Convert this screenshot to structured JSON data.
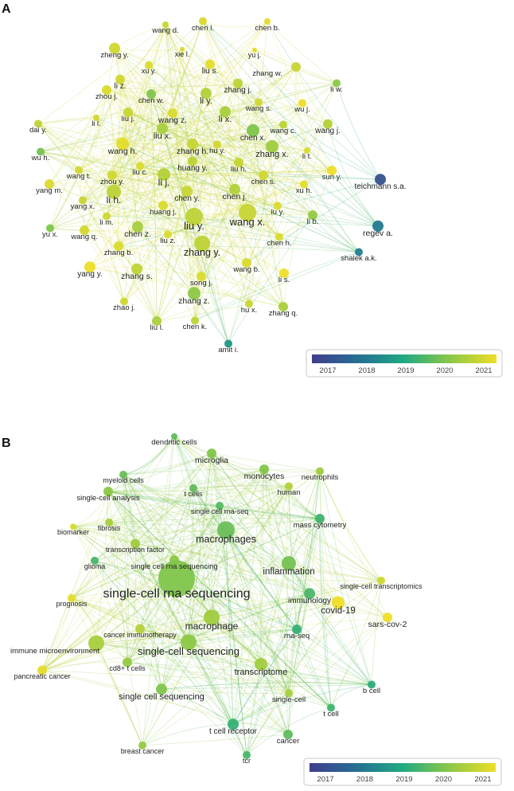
{
  "panels": [
    {
      "letter": "A",
      "legend": {
        "ticks": [
          "2017",
          "2018",
          "2019",
          "2020",
          "2021"
        ]
      },
      "nodes": [
        {
          "label": "wang d.",
          "year": 2020.6
        },
        {
          "label": "chen l.",
          "year": 2020.8
        },
        {
          "label": "chen b.",
          "year": 2020.9
        },
        {
          "label": "zheng y.",
          "year": 2020.7
        },
        {
          "label": "xie l.",
          "year": 2020.8
        },
        {
          "label": "yu j.",
          "year": 2020.9
        },
        {
          "label": "xu y.",
          "year": 2020.8
        },
        {
          "label": "liu s.",
          "year": 2020.9
        },
        {
          "label": "zhang w.",
          "year": 2020.6
        },
        {
          "label": "li z.",
          "year": 2020.7
        },
        {
          "label": "zhou j.",
          "year": 2020.8
        },
        {
          "label": "chen w.",
          "year": 2019.9
        },
        {
          "label": "li y.",
          "year": 2020.4
        },
        {
          "label": "zhang j.",
          "year": 2020.5
        },
        {
          "label": "wang s.",
          "year": 2020.7
        },
        {
          "label": "wu j.",
          "year": 2021.0
        },
        {
          "label": "li w.",
          "year": 2020.0
        },
        {
          "label": "dai y.",
          "year": 2020.5
        },
        {
          "label": "liu j.",
          "year": 2020.6
        },
        {
          "label": "wang z.",
          "year": 2020.8
        },
        {
          "label": "li x.",
          "year": 2020.3
        },
        {
          "label": "wang c.",
          "year": 2020.5
        },
        {
          "label": "wang j.",
          "year": 2020.4
        },
        {
          "label": "li l.",
          "year": 2020.7
        },
        {
          "label": "chen x.",
          "year": 2019.9
        },
        {
          "label": "liu x.",
          "year": 2020.3
        },
        {
          "label": "zhang h.",
          "year": 2020.6
        },
        {
          "label": "hu y.",
          "year": 2020.7
        },
        {
          "label": "zhang x.",
          "year": 2020.2
        },
        {
          "label": "wu h.",
          "year": 2019.8
        },
        {
          "label": "wang h.",
          "year": 2020.9
        },
        {
          "label": "li t.",
          "year": 2020.8
        },
        {
          "label": "sun y.",
          "year": 2021.0
        },
        {
          "label": "wang t.",
          "year": 2020.7
        },
        {
          "label": "huang y.",
          "year": 2020.5
        },
        {
          "label": "liu h.",
          "year": 2020.6
        },
        {
          "label": "liu c.",
          "year": 2020.8
        },
        {
          "label": "zhou y.",
          "year": 2020.7
        },
        {
          "label": "chen s.",
          "year": 2020.7
        },
        {
          "label": "xu h.",
          "year": 2020.9
        },
        {
          "label": "li j.",
          "year": 2020.4
        },
        {
          "label": "teichmann s.a.",
          "year": 2017.4
        },
        {
          "label": "yang m.",
          "year": 2020.8
        },
        {
          "label": "chen y.",
          "year": 2020.6
        },
        {
          "label": "chen j.",
          "year": 2020.4
        },
        {
          "label": "yang x.",
          "year": 2020.6
        },
        {
          "label": "li h.",
          "year": 2020.5
        },
        {
          "label": "huang j.",
          "year": 2020.8
        },
        {
          "label": "lu y.",
          "year": 2020.8
        },
        {
          "label": "li m.",
          "year": 2020.7
        },
        {
          "label": "liu y.",
          "year": 2020.5
        },
        {
          "label": "wang x.",
          "year": 2020.6
        },
        {
          "label": "li b.",
          "year": 2020.1
        },
        {
          "label": "yu x.",
          "year": 2019.9
        },
        {
          "label": "wang q.",
          "year": 2020.7
        },
        {
          "label": "chen z.",
          "year": 2020.3
        },
        {
          "label": "regev a.",
          "year": 2018.2
        },
        {
          "label": "liu z.",
          "year": 2020.8
        },
        {
          "label": "chen h.",
          "year": 2020.8
        },
        {
          "label": "zhang b.",
          "year": 2020.8
        },
        {
          "label": "zhang y.",
          "year": 2020.5
        },
        {
          "label": "shalek a.k.",
          "year": 2018.3
        },
        {
          "label": "yang y.",
          "year": 2021.0
        },
        {
          "label": "zhang s.",
          "year": 2020.5
        },
        {
          "label": "wang b.",
          "year": 2020.8
        },
        {
          "label": "song j.",
          "year": 2020.8
        },
        {
          "label": "li s.",
          "year": 2021.0
        },
        {
          "label": "zhang z.",
          "year": 2020.0
        },
        {
          "label": "zhao j.",
          "year": 2020.7
        },
        {
          "label": "hu x.",
          "year": 2020.6
        },
        {
          "label": "zhang q.",
          "year": 2020.3
        },
        {
          "label": "liu l.",
          "year": 2020.3
        },
        {
          "label": "chen k.",
          "year": 2020.5
        },
        {
          "label": "amit i.",
          "year": 2018.7
        }
      ]
    },
    {
      "letter": "B",
      "legend": {
        "ticks": [
          "2017",
          "2018",
          "2019",
          "2020",
          "2021"
        ]
      },
      "nodes": [
        {
          "label": "dendritic cells",
          "year": 2019.6
        },
        {
          "label": "microglia",
          "year": 2019.9
        },
        {
          "label": "myeloid cells",
          "year": 2019.7
        },
        {
          "label": "monocytes",
          "year": 2019.9
        },
        {
          "label": "neutrophils",
          "year": 2020.2
        },
        {
          "label": "t cells",
          "year": 2019.6
        },
        {
          "label": "single-cell analysis",
          "year": 2020.0
        },
        {
          "label": "human",
          "year": 2020.4
        },
        {
          "label": "single cell rna-seq",
          "year": 2019.5
        },
        {
          "label": "biomarker",
          "year": 2020.8
        },
        {
          "label": "fibrosis",
          "year": 2020.3
        },
        {
          "label": "mass cytometry",
          "year": 2019.3
        },
        {
          "label": "macrophages",
          "year": 2019.7
        },
        {
          "label": "transcription factor",
          "year": 2020.2
        },
        {
          "label": "glioma",
          "year": 2019.4
        },
        {
          "label": "single cell rna sequencing",
          "year": 2020.0
        },
        {
          "label": "inflammation",
          "year": 2019.8
        },
        {
          "label": "single-cell transcriptomics",
          "year": 2020.7
        },
        {
          "label": "single-cell rna sequencing",
          "year": 2019.9
        },
        {
          "label": "immunology",
          "year": 2019.4
        },
        {
          "label": "covid-19",
          "year": 2021.0
        },
        {
          "label": "prognosis",
          "year": 2020.9
        },
        {
          "label": "macrophage",
          "year": 2020.2
        },
        {
          "label": "sars-cov-2",
          "year": 2021.0
        },
        {
          "label": "rna-seq",
          "year": 2019.2
        },
        {
          "label": "cancer immunotherapy",
          "year": 2020.4
        },
        {
          "label": "immune microenvironment",
          "year": 2020.3
        },
        {
          "label": "single-cell sequencing",
          "year": 2020.0
        },
        {
          "label": "cd8+ t cells",
          "year": 2020.1
        },
        {
          "label": "pancreatic cancer",
          "year": 2020.9
        },
        {
          "label": "transcriptome",
          "year": 2020.2
        },
        {
          "label": "b cell",
          "year": 2019.1
        },
        {
          "label": "single cell sequencing",
          "year": 2019.9
        },
        {
          "label": "single-cell",
          "year": 2020.3
        },
        {
          "label": "t cell",
          "year": 2019.3
        },
        {
          "label": "t cell receptor",
          "year": 2019.2
        },
        {
          "label": "breast cancer",
          "year": 2020.1
        },
        {
          "label": "cancer",
          "year": 2019.6
        },
        {
          "label": "tcr",
          "year": 2019.4
        }
      ]
    }
  ]
}
